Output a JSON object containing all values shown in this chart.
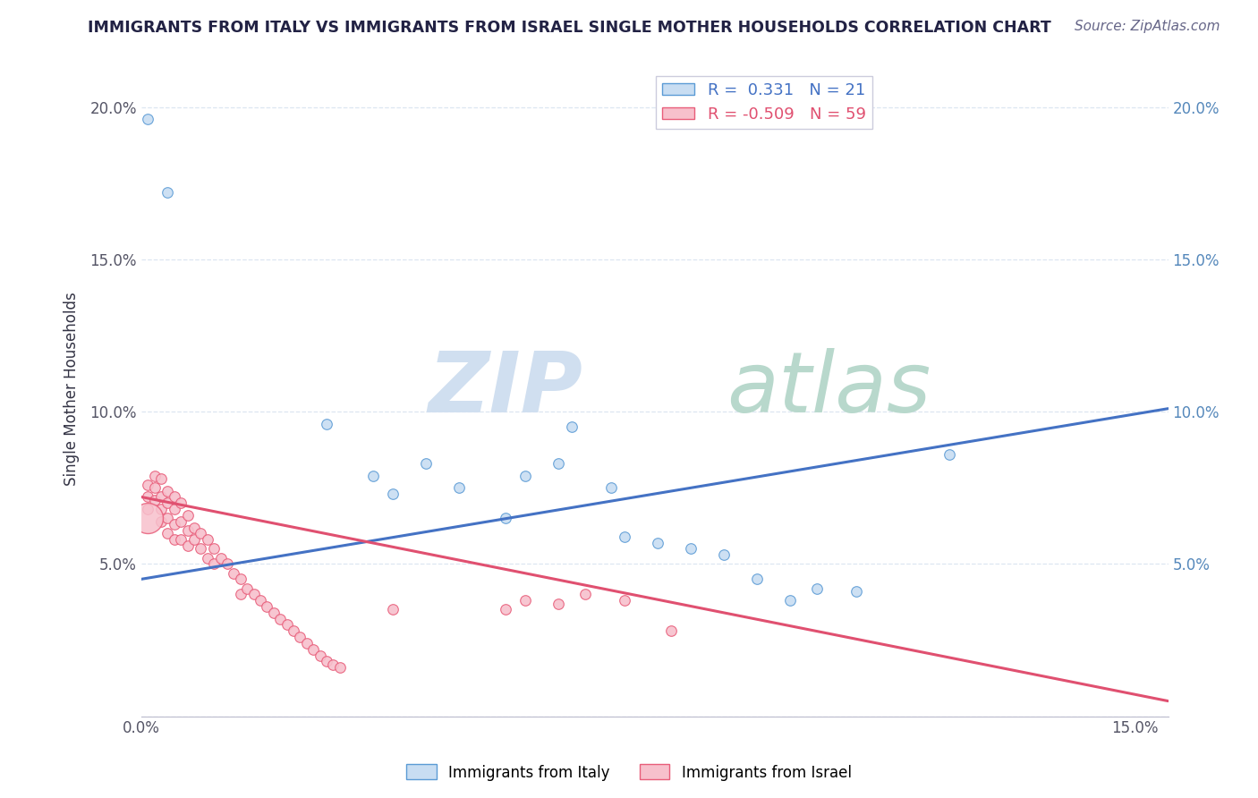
{
  "title": "IMMIGRANTS FROM ITALY VS IMMIGRANTS FROM ISRAEL SINGLE MOTHER HOUSEHOLDS CORRELATION CHART",
  "source": "Source: ZipAtlas.com",
  "ylabel": "Single Mother Households",
  "xlim": [
    0.0,
    0.155
  ],
  "ylim": [
    0.0,
    0.215
  ],
  "legend_italy_r": "0.331",
  "legend_italy_n": "21",
  "legend_israel_r": "-0.509",
  "legend_israel_n": "59",
  "italy_color": "#c8ddf2",
  "israel_color": "#f7c0cc",
  "italy_edge_color": "#5b9bd5",
  "israel_edge_color": "#e85d7a",
  "italy_line_color": "#4472c4",
  "israel_line_color": "#e05070",
  "watermark_zip_color": "#d0dff0",
  "watermark_atlas_color": "#c8e0d8",
  "background_color": "#ffffff",
  "grid_color": "#dce6f1",
  "title_color": "#222244",
  "source_color": "#666688",
  "italy_points": [
    [
      0.001,
      0.196
    ],
    [
      0.004,
      0.172
    ],
    [
      0.028,
      0.096
    ],
    [
      0.035,
      0.079
    ],
    [
      0.038,
      0.073
    ],
    [
      0.043,
      0.083
    ],
    [
      0.048,
      0.075
    ],
    [
      0.055,
      0.065
    ],
    [
      0.058,
      0.079
    ],
    [
      0.063,
      0.083
    ],
    [
      0.065,
      0.095
    ],
    [
      0.071,
      0.075
    ],
    [
      0.073,
      0.059
    ],
    [
      0.078,
      0.057
    ],
    [
      0.083,
      0.055
    ],
    [
      0.088,
      0.053
    ],
    [
      0.093,
      0.045
    ],
    [
      0.098,
      0.038
    ],
    [
      0.102,
      0.042
    ],
    [
      0.108,
      0.041
    ],
    [
      0.122,
      0.086
    ]
  ],
  "israel_points": [
    [
      0.001,
      0.076
    ],
    [
      0.001,
      0.072
    ],
    [
      0.001,
      0.068
    ],
    [
      0.002,
      0.079
    ],
    [
      0.002,
      0.075
    ],
    [
      0.002,
      0.071
    ],
    [
      0.003,
      0.078
    ],
    [
      0.003,
      0.072
    ],
    [
      0.003,
      0.068
    ],
    [
      0.003,
      0.064
    ],
    [
      0.004,
      0.074
    ],
    [
      0.004,
      0.07
    ],
    [
      0.004,
      0.065
    ],
    [
      0.004,
      0.06
    ],
    [
      0.005,
      0.072
    ],
    [
      0.005,
      0.068
    ],
    [
      0.005,
      0.063
    ],
    [
      0.005,
      0.058
    ],
    [
      0.006,
      0.07
    ],
    [
      0.006,
      0.064
    ],
    [
      0.006,
      0.058
    ],
    [
      0.007,
      0.066
    ],
    [
      0.007,
      0.061
    ],
    [
      0.007,
      0.056
    ],
    [
      0.008,
      0.062
    ],
    [
      0.008,
      0.058
    ],
    [
      0.009,
      0.06
    ],
    [
      0.009,
      0.055
    ],
    [
      0.01,
      0.058
    ],
    [
      0.01,
      0.052
    ],
    [
      0.011,
      0.055
    ],
    [
      0.011,
      0.05
    ],
    [
      0.012,
      0.052
    ],
    [
      0.013,
      0.05
    ],
    [
      0.014,
      0.047
    ],
    [
      0.015,
      0.045
    ],
    [
      0.015,
      0.04
    ],
    [
      0.016,
      0.042
    ],
    [
      0.017,
      0.04
    ],
    [
      0.018,
      0.038
    ],
    [
      0.019,
      0.036
    ],
    [
      0.02,
      0.034
    ],
    [
      0.021,
      0.032
    ],
    [
      0.022,
      0.03
    ],
    [
      0.023,
      0.028
    ],
    [
      0.024,
      0.026
    ],
    [
      0.025,
      0.024
    ],
    [
      0.026,
      0.022
    ],
    [
      0.027,
      0.02
    ],
    [
      0.028,
      0.018
    ],
    [
      0.029,
      0.017
    ],
    [
      0.03,
      0.016
    ],
    [
      0.038,
      0.035
    ],
    [
      0.055,
      0.035
    ],
    [
      0.058,
      0.038
    ],
    [
      0.063,
      0.037
    ],
    [
      0.067,
      0.04
    ],
    [
      0.073,
      0.038
    ],
    [
      0.08,
      0.028
    ]
  ],
  "israel_big_point": [
    0.001,
    0.065
  ],
  "italy_trendline": [
    [
      0.0,
      0.045
    ],
    [
      0.155,
      0.101
    ]
  ],
  "israel_trendline": [
    [
      0.0,
      0.072
    ],
    [
      0.155,
      0.005
    ]
  ]
}
